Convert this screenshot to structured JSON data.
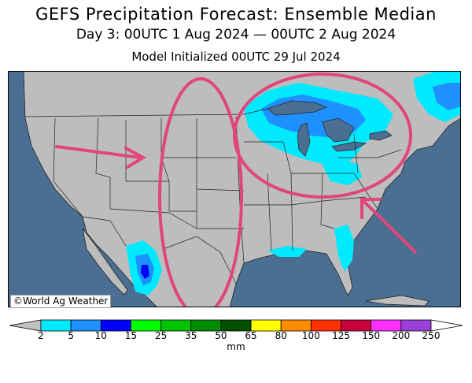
{
  "header": {
    "title": "GEFS Precipitation Forecast: Ensemble Median",
    "period": "Day 3: 00UTC 1 Aug 2024 — 00UTC 2 Aug 2024",
    "init": "Model Initialized 00UTC 29 Jul 2024"
  },
  "map": {
    "credit": "©World Ag Weather",
    "ocean_color": "#4a6f93",
    "land_color": "#bdbdbd",
    "annotation_color": "#e0457c",
    "annotations": [
      "arrow-rockies",
      "oval-plains",
      "oval-great-lakes",
      "arrow-southeast"
    ]
  },
  "colorbar": {
    "unit": "mm",
    "ticks": [
      "2",
      "5",
      "10",
      "15",
      "25",
      "35",
      "50",
      "65",
      "80",
      "100",
      "125",
      "150",
      "200",
      "250"
    ],
    "colors": [
      "#c0c0c0",
      "#00eaff",
      "#1e90ff",
      "#0000ff",
      "#00ff00",
      "#00c400",
      "#008c00",
      "#005000",
      "#ffff00",
      "#ff8c00",
      "#ff3000",
      "#c8003c",
      "#ff30ff",
      "#9a40d8",
      "#ffffff"
    ]
  }
}
